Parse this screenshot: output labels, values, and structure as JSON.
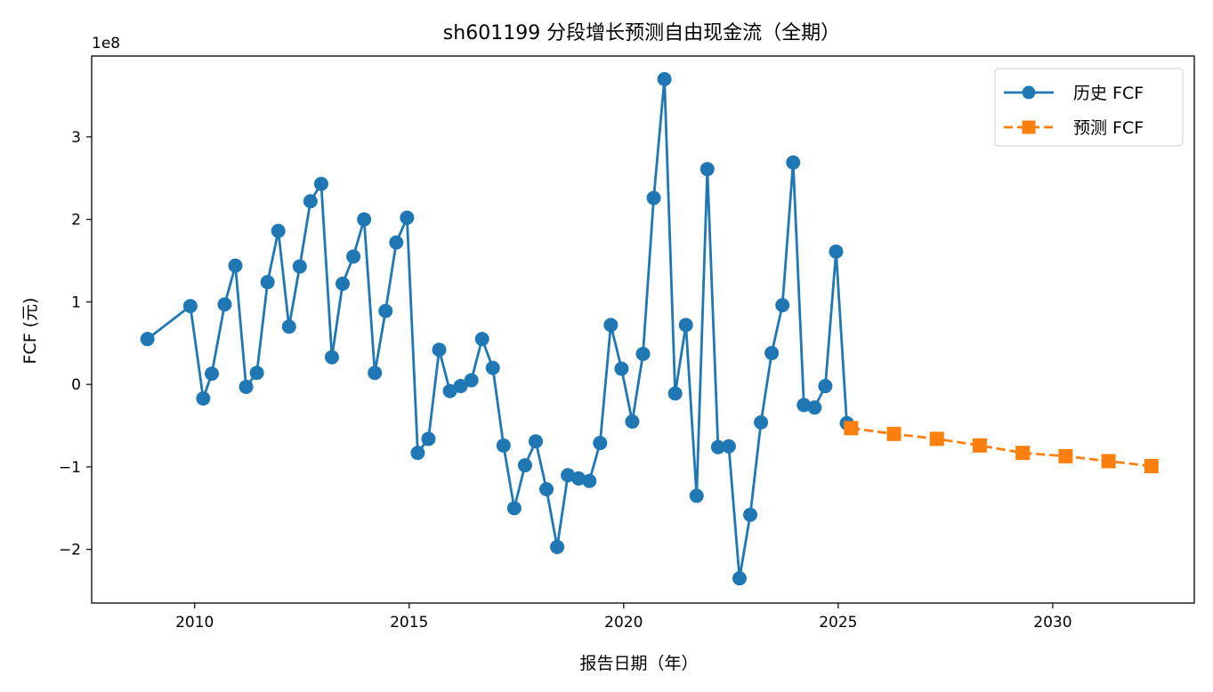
{
  "chart_data": {
    "type": "line",
    "title": "sh601199 分段增长预测自由现金流（全期）",
    "xlabel": "报告日期（年）",
    "ylabel": "FCF (元)",
    "y_offset_label": "1e8",
    "xlim": [
      2007.6,
      2033.3
    ],
    "ylim": [
      -2.65,
      3.98
    ],
    "x_ticks": [
      2010,
      2015,
      2020,
      2025,
      2030
    ],
    "x_tick_labels": [
      "2010",
      "2015",
      "2020",
      "2025",
      "2030"
    ],
    "y_ticks": [
      -2,
      -1,
      0,
      1,
      2,
      3
    ],
    "y_tick_labels": [
      "−2",
      "−1",
      "0",
      "1",
      "2",
      "3"
    ],
    "grid": false,
    "legend_position": "upper right",
    "series": [
      {
        "name": "历史 FCF",
        "color": "#1f77b4",
        "marker": "circle",
        "linestyle": "solid",
        "x": [
          2008.9,
          2009.9,
          2010.2,
          2010.4,
          2010.7,
          2010.95,
          2011.2,
          2011.45,
          2011.7,
          2011.95,
          2012.2,
          2012.45,
          2012.7,
          2012.95,
          2013.2,
          2013.45,
          2013.7,
          2013.95,
          2014.2,
          2014.45,
          2014.7,
          2014.95,
          2015.2,
          2015.45,
          2015.7,
          2015.95,
          2016.2,
          2016.45,
          2016.7,
          2016.95,
          2017.2,
          2017.45,
          2017.7,
          2017.95,
          2018.2,
          2018.45,
          2018.7,
          2018.95,
          2019.2,
          2019.45,
          2019.7,
          2019.95,
          2020.2,
          2020.45,
          2020.7,
          2020.95,
          2021.2,
          2021.45,
          2021.7,
          2021.95,
          2022.2,
          2022.45,
          2022.7,
          2022.95,
          2023.2,
          2023.45,
          2023.7,
          2023.95,
          2024.2,
          2024.45,
          2024.7,
          2024.95,
          2025.2
        ],
        "y": [
          0.55,
          0.95,
          -0.17,
          0.13,
          0.97,
          1.44,
          -0.03,
          0.14,
          1.24,
          1.86,
          0.7,
          1.43,
          2.22,
          2.43,
          0.33,
          1.22,
          1.55,
          2.0,
          0.14,
          0.89,
          1.72,
          2.02,
          -0.83,
          -0.66,
          0.42,
          -0.08,
          -0.02,
          0.05,
          0.55,
          0.2,
          -0.74,
          -1.5,
          -0.98,
          -0.69,
          -1.27,
          -1.97,
          -1.1,
          -1.14,
          -1.17,
          -0.71,
          0.72,
          0.19,
          -0.45,
          0.37,
          2.26,
          3.7,
          -0.11,
          0.72,
          -1.35,
          2.61,
          -0.76,
          -0.75,
          -2.35,
          -1.58,
          -0.46,
          0.38,
          0.96,
          2.69,
          -0.25,
          -0.28,
          -0.02,
          1.61,
          -0.47
        ]
      },
      {
        "name": "预测 FCF",
        "color": "#ff7f0e",
        "marker": "square",
        "linestyle": "dashed",
        "x": [
          2025.3,
          2026.3,
          2027.3,
          2028.3,
          2029.3,
          2030.3,
          2031.3,
          2032.3
        ],
        "y": [
          -0.53,
          -0.6,
          -0.66,
          -0.74,
          -0.83,
          -0.87,
          -0.93,
          -0.99
        ]
      }
    ]
  }
}
